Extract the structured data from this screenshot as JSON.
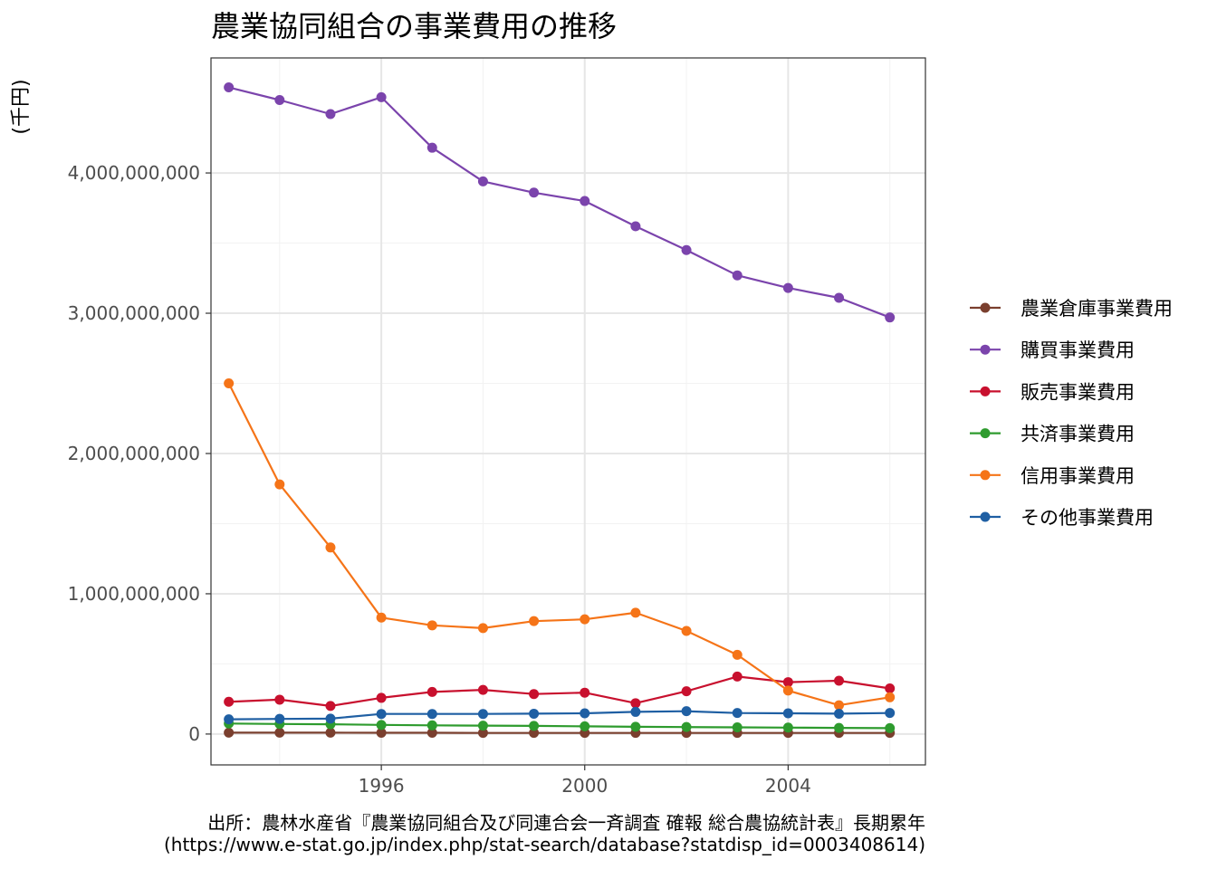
{
  "chart_data": {
    "type": "line",
    "title": "農業協同組合の事業費用の推移",
    "ylabel": "(千円)",
    "xlabel": "",
    "x": [
      1993,
      1994,
      1995,
      1996,
      1997,
      1998,
      1999,
      2000,
      2001,
      2002,
      2003,
      2004,
      2005,
      2006
    ],
    "xlim": [
      1992.65,
      2006.7
    ],
    "ylim": [
      -220000000,
      4820000000
    ],
    "x_ticks": [
      1996,
      2000,
      2004
    ],
    "x_tick_labels": [
      "1996",
      "2000",
      "2004"
    ],
    "y_ticks": [
      0,
      1000000000,
      2000000000,
      3000000000,
      4000000000
    ],
    "y_tick_labels": [
      "0",
      "1,000,000,000",
      "2,000,000,000",
      "3,000,000,000",
      "4,000,000,000"
    ],
    "grid": true,
    "legend_position": "right",
    "series": [
      {
        "name": "農業倉庫事業費用",
        "color": "#7a3f2e",
        "values": [
          10000000,
          10000000,
          10000000,
          9000000,
          9000000,
          8000000,
          8000000,
          8000000,
          8000000,
          8000000,
          8000000,
          8000000,
          8000000,
          8000000
        ]
      },
      {
        "name": "購買事業費用",
        "color": "#7b44ac",
        "values": [
          4610000000,
          4520000000,
          4420000000,
          4540000000,
          4180000000,
          3940000000,
          3860000000,
          3800000000,
          3620000000,
          3450000000,
          3270000000,
          3180000000,
          3110000000,
          2970000000
        ]
      },
      {
        "name": "販売事業費用",
        "color": "#c8102e",
        "values": [
          230000000,
          245000000,
          200000000,
          258000000,
          300000000,
          315000000,
          285000000,
          295000000,
          220000000,
          305000000,
          410000000,
          370000000,
          380000000,
          325000000
        ]
      },
      {
        "name": "共済事業費用",
        "color": "#2e9b2e",
        "values": [
          75000000,
          72000000,
          70000000,
          65000000,
          62000000,
          60000000,
          58000000,
          55000000,
          52000000,
          50000000,
          48000000,
          46000000,
          44000000,
          42000000
        ]
      },
      {
        "name": "信用事業費用",
        "color": "#f57418",
        "values": [
          2500000000,
          1780000000,
          1330000000,
          830000000,
          775000000,
          755000000,
          805000000,
          818000000,
          865000000,
          735000000,
          565000000,
          310000000,
          205000000,
          262000000
        ]
      },
      {
        "name": "その他事業費用",
        "color": "#1f5fa3",
        "values": [
          105000000,
          108000000,
          110000000,
          143000000,
          143000000,
          143000000,
          145000000,
          148000000,
          158000000,
          163000000,
          150000000,
          148000000,
          145000000,
          150000000
        ]
      }
    ]
  },
  "caption": {
    "line1": "出所：農林水産省『農業協同組合及び同連合会一斉調査 確報 総合農協統計表』長期累年",
    "line2": "(https://www.e-stat.go.jp/index.php/stat-search/database?statdisp_id=0003408614)"
  },
  "colors": {
    "panel_border": "#333333",
    "grid_major": "#e6e6e6",
    "grid_minor": "#f2f2f2",
    "axis_text": "#4d4d4d",
    "title": "#000000"
  }
}
